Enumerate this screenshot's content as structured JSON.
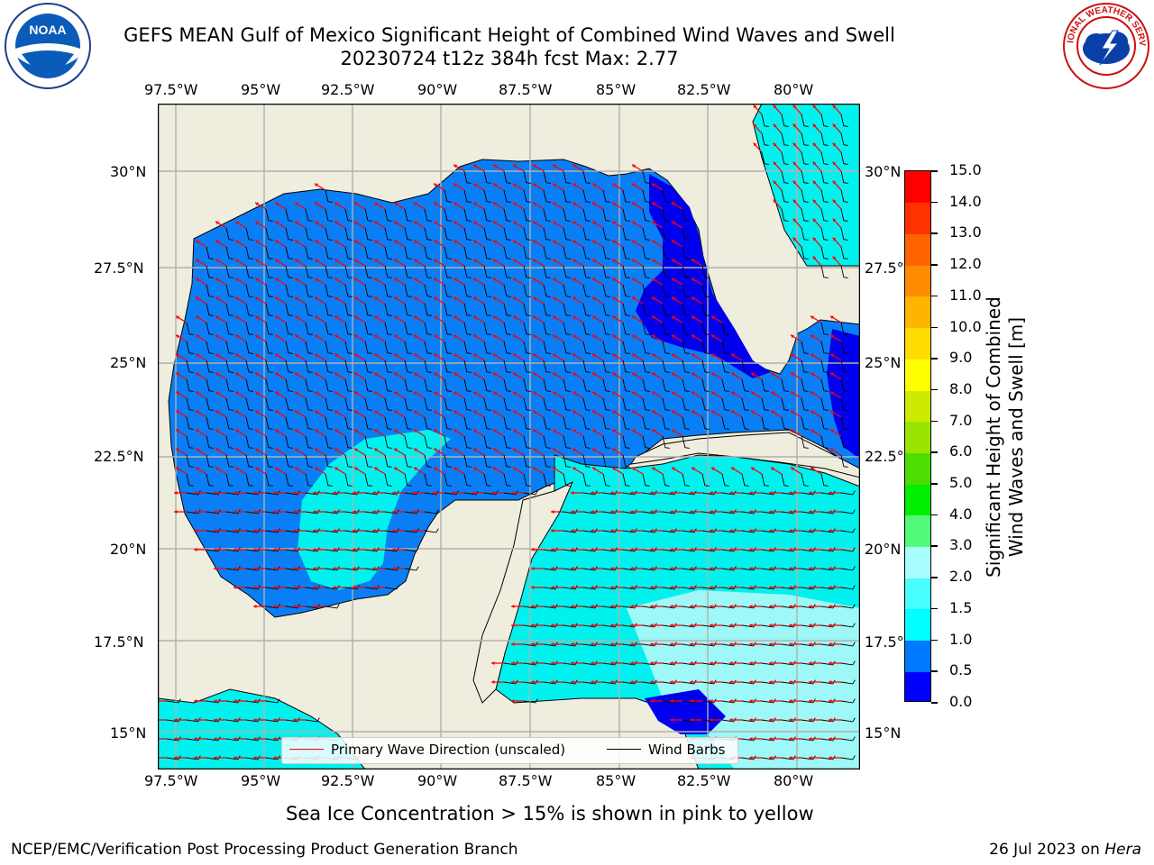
{
  "title": {
    "line1": "GEFS MEAN Gulf of Mexico Significant Height of Combined Wind Waves and Swell",
    "line2": "20230724 t12z 384h fcst   Max: 2.77"
  },
  "logos": {
    "left": {
      "name": "noaa-logo",
      "text": "NOAA"
    },
    "right": {
      "name": "nws-logo",
      "text": "NATIONAL WEATHER SERVICE"
    }
  },
  "map": {
    "lon_ticks": [
      "97.5°W",
      "95°W",
      "92.5°W",
      "90°W",
      "87.5°W",
      "85°W",
      "82.5°W",
      "80°W"
    ],
    "lat_ticks": [
      "30°N",
      "27.5°N",
      "25°N",
      "22.5°N",
      "20°N",
      "17.5°N",
      "15°N"
    ],
    "lon_range": [
      -98,
      -78.3
    ],
    "lat_range": [
      14,
      31.7
    ],
    "colors": {
      "land": "#efedde",
      "deep": "#0000ee",
      "mid": "#0a7ff5",
      "cyan": "#00f2ee",
      "light": "#9ff8f8",
      "arrow": "#ff0000",
      "barb": "#000000",
      "grid": "#b0b0b0"
    }
  },
  "colorbar": {
    "ticks": [
      "0.0",
      "0.5",
      "1.0",
      "1.5",
      "2.0",
      "3.0",
      "4.0",
      "5.0",
      "6.0",
      "7.0",
      "8.0",
      "9.0",
      "10.0",
      "11.0",
      "12.0",
      "13.0",
      "14.0",
      "15.0"
    ],
    "colors": [
      "#0000ff",
      "#0078ff",
      "#00ffff",
      "#48fefe",
      "#a8fefe",
      "#52fa7a",
      "#00ee00",
      "#4ddd00",
      "#99e500",
      "#cceb00",
      "#ffff00",
      "#ffdc00",
      "#ffb400",
      "#ff8c00",
      "#ff6400",
      "#ff3200",
      "#ff0000"
    ],
    "label_line1": "Significant Height of Combined",
    "label_line2": "Wind Waves and Swell [m]"
  },
  "legend": {
    "primary": "Primary Wave Direction (unscaled)",
    "barbs": "Wind Barbs"
  },
  "note": "Sea Ice Concentration > 15% is shown in pink to yellow",
  "footer": {
    "left": "NCEP/EMC/Verification Post Processing Product Generation Branch",
    "right_date": "26 Jul 2023 on ",
    "right_host": "Hera"
  }
}
